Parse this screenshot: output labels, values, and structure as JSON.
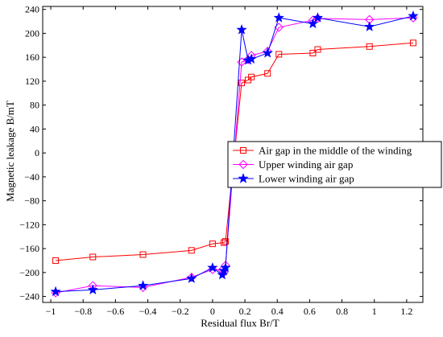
{
  "chart_data": {
    "type": "line",
    "title": "",
    "xlabel": "Residual flux Br/T",
    "ylabel": "Magnetic leakage B/mT",
    "xlim": [
      -1.05,
      1.3
    ],
    "ylim": [
      -250,
      245
    ],
    "xticks": [
      -1,
      -0.8,
      -0.6,
      -0.4,
      -0.2,
      0,
      0.2,
      0.4,
      0.6,
      0.8,
      1,
      1.2
    ],
    "xtick_labels": [
      "−1",
      "−0.8",
      "−0.6",
      "−0.4",
      "−0.2",
      "0",
      "0.2",
      "0.4",
      "0.6",
      "0.8",
      "1",
      "1.2"
    ],
    "yticks": [
      -240,
      -200,
      -160,
      -120,
      -80,
      -40,
      0,
      40,
      80,
      120,
      160,
      200,
      240
    ],
    "ytick_labels": [
      "−240",
      "−200",
      "−160",
      "−120",
      "−80",
      "−40",
      "0",
      "40",
      "80",
      "120",
      "160",
      "200",
      "240"
    ],
    "grid": false,
    "legend_position": "center-right",
    "series": [
      {
        "name": "Air gap in the middle of the winding",
        "color": "#ff0000",
        "marker": "square",
        "x": [
          -0.97,
          -0.74,
          -0.43,
          -0.13,
          0.0,
          0.07,
          0.08,
          0.18,
          0.22,
          0.24,
          0.34,
          0.41,
          0.62,
          0.65,
          0.97,
          1.24
        ],
        "y": [
          -180,
          -174,
          -170,
          -163,
          -152,
          -150,
          -148,
          117,
          122,
          127,
          133,
          165,
          167,
          173,
          178,
          184
        ]
      },
      {
        "name": "Upper winding air gap",
        "color": "#ff00ff",
        "marker": "diamond",
        "x": [
          -0.97,
          -0.74,
          -0.43,
          -0.13,
          0.0,
          0.06,
          0.07,
          0.08,
          0.18,
          0.22,
          0.24,
          0.34,
          0.41,
          0.62,
          0.65,
          0.97,
          1.24
        ],
        "y": [
          -234,
          -222,
          -225,
          -208,
          -195,
          -196,
          -200,
          -188,
          152,
          156,
          163,
          170,
          210,
          222,
          225,
          223,
          226
        ]
      },
      {
        "name": "Lower winding air gap",
        "color": "#0000ff",
        "marker": "star",
        "x": [
          -0.97,
          -0.74,
          -0.43,
          -0.13,
          0.0,
          0.06,
          0.07,
          0.08,
          0.18,
          0.22,
          0.24,
          0.34,
          0.41,
          0.62,
          0.65,
          0.97,
          1.24
        ],
        "y": [
          -232,
          -229,
          -222,
          -210,
          -192,
          -204,
          -197,
          -192,
          206,
          155,
          157,
          167,
          226,
          216,
          226,
          211,
          229
        ]
      }
    ]
  }
}
